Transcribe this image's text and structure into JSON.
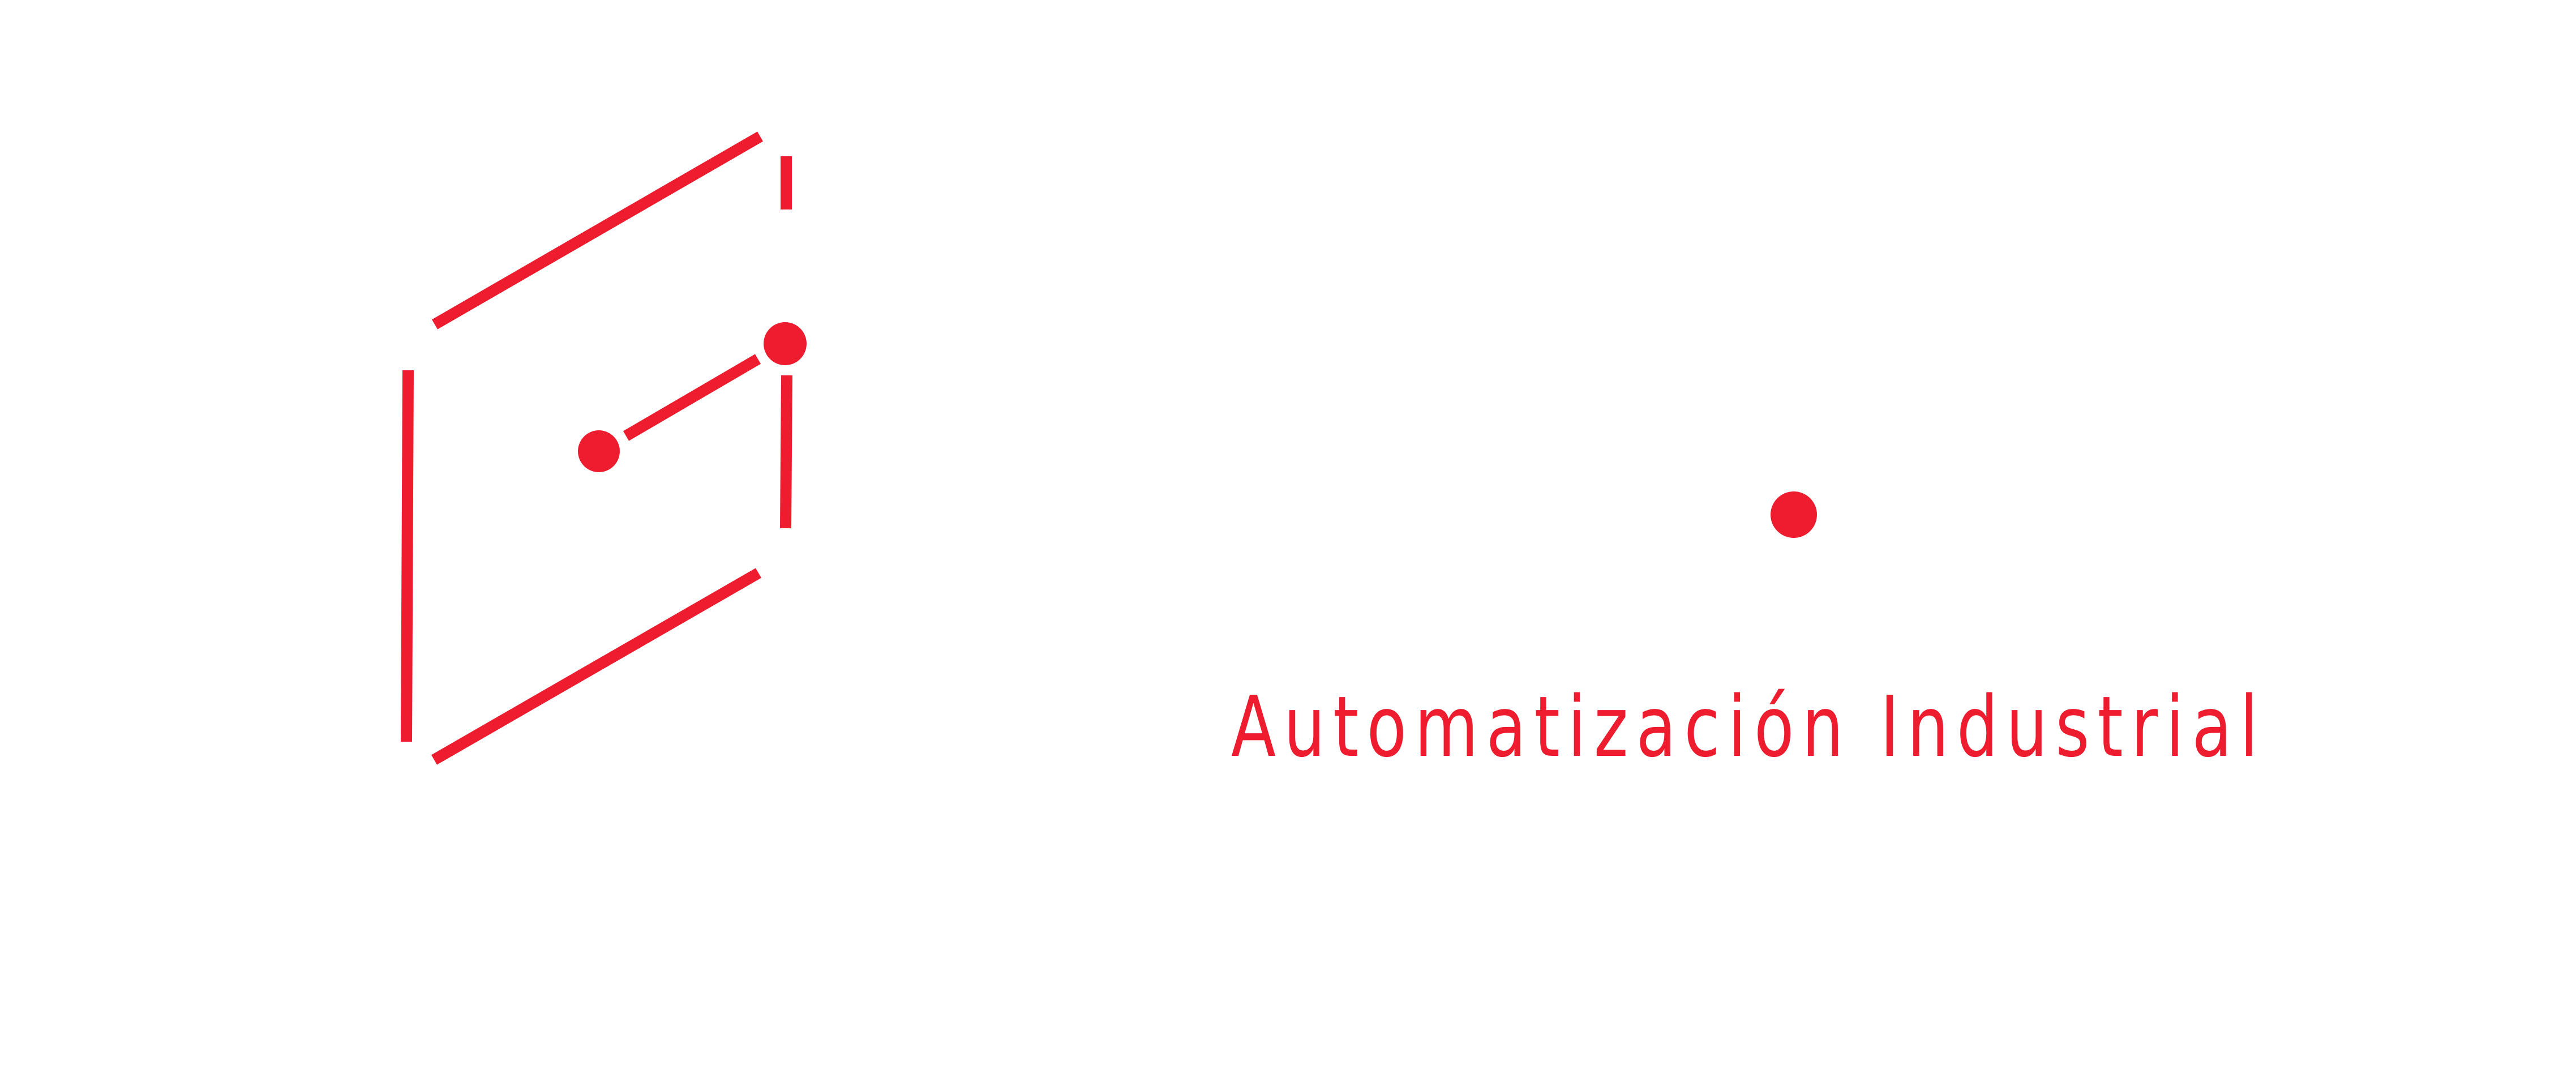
{
  "brand": {
    "accent_color": "#ED1C2E",
    "background_color": "#FFFFFF",
    "tagline": "Automatización Industrial"
  },
  "logo": {
    "mark_icon": "hexagonal-circuit-mark-icon",
    "node_icon": "red-dot-icon"
  }
}
